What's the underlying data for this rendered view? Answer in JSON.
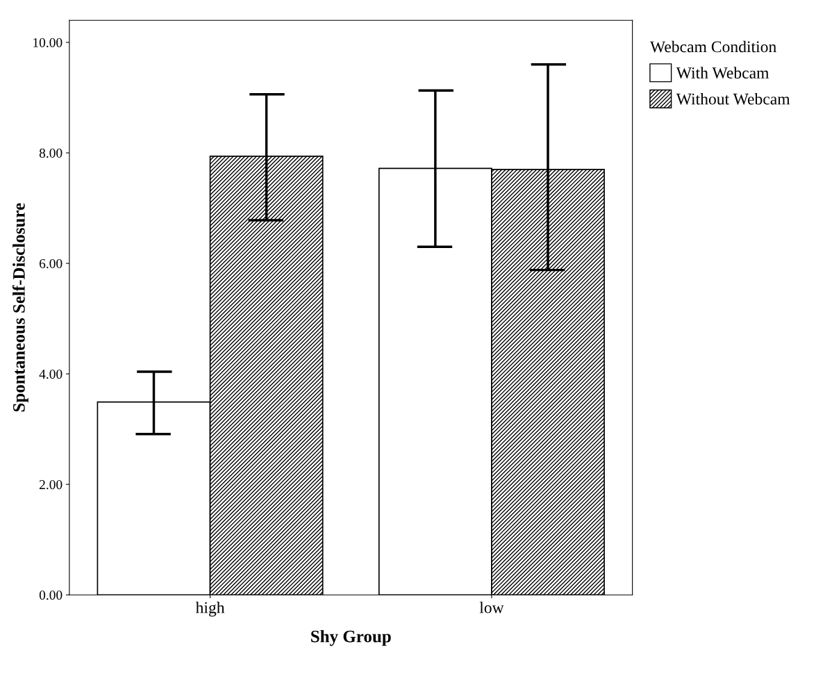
{
  "chart_data": {
    "type": "bar",
    "xlabel": "Shy Group",
    "ylabel": "Spontaneous Self-Disclosure",
    "legend_title": "Webcam Condition",
    "legend": "top right",
    "categories": [
      "high",
      "low"
    ],
    "series": [
      {
        "name": "With Webcam",
        "color": "#ffffff",
        "values": [
          3.49,
          7.72
        ],
        "errors": [
          [
            2.91,
            4.04
          ],
          [
            6.3,
            9.13
          ]
        ]
      },
      {
        "name": "Without Webcam",
        "color": "#000000",
        "values": [
          7.94,
          7.7
        ],
        "errors": [
          [
            6.78,
            9.06
          ],
          [
            5.88,
            9.6
          ]
        ]
      }
    ],
    "ylim": [
      0,
      10.4
    ],
    "yticks": [
      {
        "value": 0,
        "label": "0.00"
      },
      {
        "value": 2,
        "label": "2.00"
      },
      {
        "value": 4,
        "label": "4.00"
      },
      {
        "value": 6,
        "label": "6.00"
      },
      {
        "value": 8,
        "label": "8.00"
      },
      {
        "value": 10,
        "label": "10.00"
      }
    ],
    "grid": false
  }
}
